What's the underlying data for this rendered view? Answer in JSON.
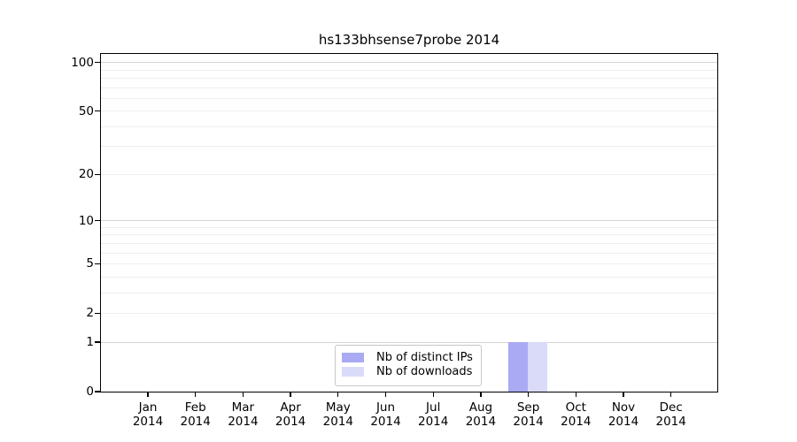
{
  "chart_data": {
    "type": "bar",
    "title": "hs133bhsense7probe 2014",
    "categories": [
      "Jan 2014",
      "Feb 2014",
      "Mar 2014",
      "Apr 2014",
      "May 2014",
      "Jun 2014",
      "Jul 2014",
      "Aug 2014",
      "Sep 2014",
      "Oct 2014",
      "Nov 2014",
      "Dec 2014"
    ],
    "series": [
      {
        "name": "Nb of distinct IPs",
        "color": "#a9a9f4",
        "values": [
          0,
          0,
          0,
          0,
          0,
          0,
          0,
          0,
          1,
          0,
          0,
          0
        ]
      },
      {
        "name": "Nb of downloads",
        "color": "#dadaf9",
        "values": [
          0,
          0,
          0,
          0,
          0,
          0,
          0,
          0,
          1,
          0,
          0,
          0
        ]
      }
    ],
    "xlabel": "",
    "ylabel": "",
    "y_scale": "log(1+y)",
    "y_ticks": [
      0,
      1,
      2,
      5,
      10,
      20,
      50,
      100
    ],
    "y_major_gridlines": [
      1,
      10,
      100
    ],
    "y_minor_gridlines": [
      2,
      3,
      4,
      5,
      6,
      7,
      8,
      9,
      20,
      30,
      40,
      50,
      60,
      70,
      80,
      90
    ],
    "ylim": [
      0,
      115
    ],
    "grid": true,
    "legend_position": "lower center"
  },
  "colors": {
    "major_grid": "#d4d4d4",
    "minor_grid": "#efefef",
    "axis": "#000000",
    "legend_border": "#c8c8c8",
    "background": "#ffffff"
  }
}
